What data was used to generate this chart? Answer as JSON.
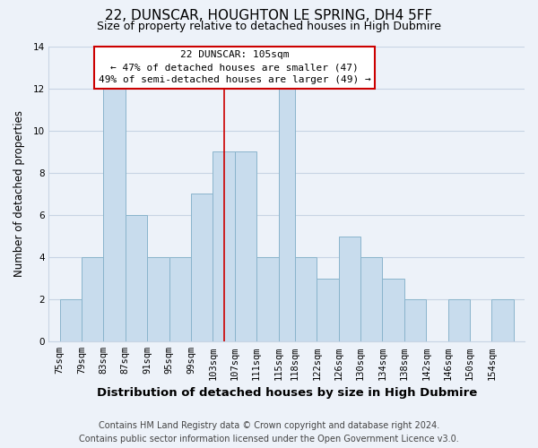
{
  "title": "22, DUNSCAR, HOUGHTON LE SPRING, DH4 5FF",
  "subtitle": "Size of property relative to detached houses in High Dubmire",
  "xlabel": "Distribution of detached houses by size in High Dubmire",
  "ylabel": "Number of detached properties",
  "footer_lines": [
    "Contains HM Land Registry data © Crown copyright and database right 2024.",
    "Contains public sector information licensed under the Open Government Licence v3.0."
  ],
  "bar_labels": [
    "75sqm",
    "79sqm",
    "83sqm",
    "87sqm",
    "91sqm",
    "95sqm",
    "99sqm",
    "103sqm",
    "107sqm",
    "111sqm",
    "115sqm",
    "118sqm",
    "122sqm",
    "126sqm",
    "130sqm",
    "134sqm",
    "138sqm",
    "142sqm",
    "146sqm",
    "150sqm",
    "154sqm"
  ],
  "bar_values": [
    2,
    4,
    12,
    6,
    4,
    4,
    7,
    9,
    9,
    4,
    12,
    4,
    3,
    5,
    4,
    3,
    2,
    0,
    2,
    0,
    2
  ],
  "bar_color": "#c8dced",
  "bar_edge_color": "#8ab4cc",
  "annotation_title": "22 DUNSCAR: 105sqm",
  "annotation_line1": "← 47% of detached houses are smaller (47)",
  "annotation_line2": "49% of semi-detached houses are larger (49) →",
  "annotation_box_color": "#ffffff",
  "annotation_box_edge_color": "#cc0000",
  "annotation_text_color": "#000000",
  "vline_color": "#cc0000",
  "ylim": [
    0,
    14
  ],
  "yticks": [
    0,
    2,
    4,
    6,
    8,
    10,
    12,
    14
  ],
  "background_color": "#edf2f9",
  "grid_color": "#c8d4e4",
  "title_fontsize": 11,
  "subtitle_fontsize": 9,
  "xlabel_fontsize": 9.5,
  "ylabel_fontsize": 8.5,
  "tick_fontsize": 7.5,
  "annot_fontsize": 8,
  "footer_fontsize": 7
}
